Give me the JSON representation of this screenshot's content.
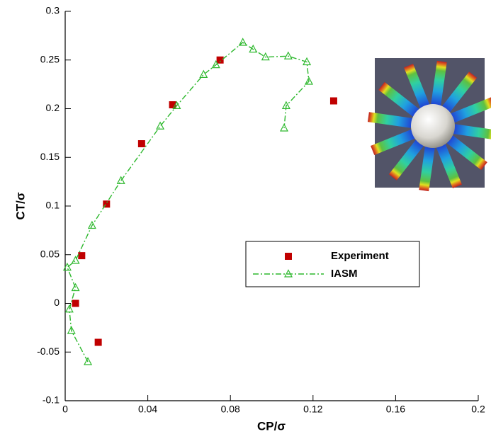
{
  "chart_data": {
    "type": "scatter",
    "x_label": "CP/σ",
    "y_label": "CT/σ",
    "xlim": [
      0,
      0.2
    ],
    "xticks": [
      0,
      0.04,
      0.08,
      0.12,
      0.16,
      0.2
    ],
    "ylim": [
      -0.1,
      0.3
    ],
    "yticks": [
      -0.1,
      -0.05,
      0,
      0.05,
      0.1,
      0.15,
      0.2,
      0.25,
      0.3
    ],
    "legend": "center-right",
    "series": [
      {
        "name": "Experiment",
        "color": "#c00000",
        "style": "markers",
        "x": [
          0.016,
          0.005,
          0.008,
          0.02,
          0.037,
          0.052,
          0.075,
          0.13
        ],
        "y": [
          -0.04,
          0,
          0.049,
          0.102,
          0.164,
          0.204,
          0.25,
          0.208
        ]
      },
      {
        "name": "IASM",
        "color": "#2db82d",
        "style": "line-markers",
        "x": [
          0.011,
          0.003,
          0.002,
          0.005,
          0.001,
          0.005,
          0.013,
          0.027,
          0.046,
          0.054,
          0.067,
          0.073,
          0.086,
          0.091,
          0.097,
          0.108,
          0.117,
          0.118,
          0.107,
          0.106
        ],
        "y": [
          -0.06,
          -0.028,
          -0.006,
          0.016,
          0.037,
          0.044,
          0.08,
          0.126,
          0.182,
          0.203,
          0.235,
          0.245,
          0.268,
          0.261,
          0.253,
          0.254,
          0.248,
          0.228,
          0.203,
          0.18
        ]
      }
    ]
  }
}
